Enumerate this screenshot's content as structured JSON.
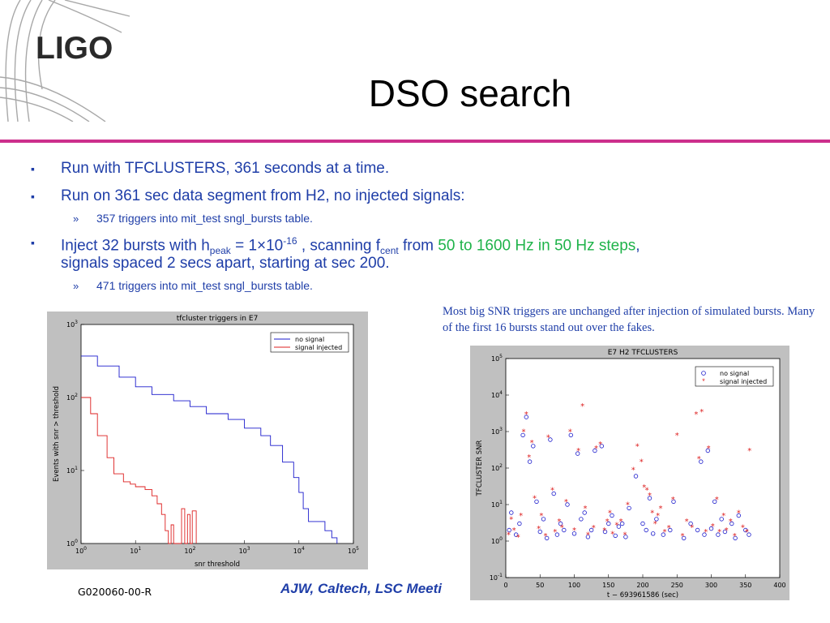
{
  "logo": {
    "text": "LIGO"
  },
  "title": "DSO search",
  "bullets": {
    "b1": "Run with TFCLUSTERS, 361 seconds at a time.",
    "b2": "Run on 361 sec data segment from H2, no injected signals:",
    "b2_sub": "357 triggers into mit_test sngl_bursts table.",
    "b3": {
      "p1": "Inject 32 bursts with h",
      "sub_peak": "peak",
      "p2": " = 1×10",
      "sup_exp": "-16",
      "p3": "  , scanning f",
      "sub_cent": "cent",
      "p4": " from ",
      "green": "50 to 1600 Hz in 50 Hz steps",
      "p5": ",",
      "line2": "signals spaced 2 secs apart, starting at sec 200."
    },
    "b3_sub": "471 triggers into mit_test sngl_bursts table.",
    "marker_main": "▪",
    "marker_sub": "»"
  },
  "note": "Most big SNR triggers are unchanged after injection of simulated bursts. Many of the first 16 bursts stand out over the fakes.",
  "footer": {
    "doc_id": "G020060-00-R",
    "author": "AJW, Caltech, LSC Meeti"
  },
  "colors": {
    "blue_series": "#1a1acc",
    "red_series": "#dd1f1f",
    "plot_bg": "#c0c0c0",
    "accent_rule": "#cc2f8c",
    "text_blue": "#1f3ea8",
    "green": "#1fb34a"
  },
  "chart_data": [
    {
      "type": "line",
      "title": "tfcluster triggers in E7",
      "xlabel": "snr threshold",
      "ylabel": "Events with snr > threshold",
      "xscale": "log",
      "yscale": "log",
      "xlim": [
        1,
        100000
      ],
      "ylim": [
        1,
        1000
      ],
      "xticks": [
        "10^0",
        "10^1",
        "10^2",
        "10^3",
        "10^4",
        "10^5"
      ],
      "yticks": [
        "10^0",
        "10^1",
        "10^2",
        "10^3"
      ],
      "legend_position": "top-right",
      "series": [
        {
          "name": "no signal",
          "color": "#1a1acc",
          "x": [
            1,
            2,
            5,
            10,
            20,
            50,
            100,
            200,
            500,
            1000,
            2000,
            3000,
            5000,
            8000,
            10000,
            12000,
            15000,
            20000,
            30000,
            40000,
            50000
          ],
          "y": [
            370,
            270,
            190,
            140,
            110,
            90,
            75,
            60,
            50,
            38,
            30,
            22,
            13,
            8,
            5,
            3,
            2,
            2,
            1.5,
            1.2,
            1
          ]
        },
        {
          "name": "signal injected",
          "color": "#dd1f1f",
          "x": [
            1,
            1.5,
            2,
            3,
            4,
            6,
            8,
            10,
            15,
            20,
            25,
            30,
            35,
            40,
            45,
            50,
            70,
            80,
            90,
            100,
            110,
            130
          ],
          "y": [
            100,
            60,
            30,
            15,
            9,
            7,
            6.5,
            6,
            5.5,
            4.5,
            3.5,
            2.5,
            1.5,
            1,
            1.8,
            1,
            3,
            1,
            2.5,
            1,
            2.8,
            1
          ]
        }
      ]
    },
    {
      "type": "scatter",
      "title": "E7 H2 TFCLUSTERS",
      "xlabel": "t − 693961586  (sec)",
      "ylabel": "TFCLUSTER SNR",
      "yscale": "log",
      "xlim": [
        0,
        400
      ],
      "ylim": [
        0.1,
        100000
      ],
      "xticks": [
        "0",
        "50",
        "100",
        "150",
        "200",
        "250",
        "300",
        "350",
        "400"
      ],
      "yticks": [
        "10^-1",
        "10^0",
        "10^1",
        "10^2",
        "10^3",
        "10^4",
        "10^5"
      ],
      "legend_position": "top-right",
      "series": [
        {
          "name": "no signal",
          "color": "#1a1acc",
          "marker": "circle",
          "points": [
            [
              5,
              2
            ],
            [
              8,
              6
            ],
            [
              15,
              1.5
            ],
            [
              20,
              3
            ],
            [
              25,
              800
            ],
            [
              30,
              2500
            ],
            [
              35,
              150
            ],
            [
              40,
              400
            ],
            [
              45,
              12
            ],
            [
              50,
              1.8
            ],
            [
              55,
              4
            ],
            [
              60,
              1.2
            ],
            [
              65,
              600
            ],
            [
              70,
              20
            ],
            [
              75,
              1.5
            ],
            [
              80,
              3
            ],
            [
              85,
              2
            ],
            [
              90,
              10
            ],
            [
              95,
              800
            ],
            [
              100,
              1.6
            ],
            [
              105,
              250
            ],
            [
              110,
              4
            ],
            [
              115,
              6
            ],
            [
              120,
              1.3
            ],
            [
              125,
              2
            ],
            [
              130,
              300
            ],
            [
              140,
              400
            ],
            [
              145,
              1.8
            ],
            [
              150,
              3
            ],
            [
              155,
              5
            ],
            [
              160,
              1.4
            ],
            [
              165,
              2.5
            ],
            [
              170,
              3
            ],
            [
              175,
              1.3
            ],
            [
              180,
              8
            ],
            [
              190,
              60
            ],
            [
              200,
              3
            ],
            [
              205,
              2
            ],
            [
              210,
              15
            ],
            [
              215,
              1.6
            ],
            [
              220,
              4
            ],
            [
              230,
              1.5
            ],
            [
              240,
              2
            ],
            [
              245,
              12
            ],
            [
              260,
              1.2
            ],
            [
              270,
              3
            ],
            [
              280,
              2
            ],
            [
              285,
              150
            ],
            [
              290,
              1.5
            ],
            [
              295,
              300
            ],
            [
              300,
              2.2
            ],
            [
              305,
              12
            ],
            [
              310,
              1.5
            ],
            [
              315,
              4
            ],
            [
              320,
              1.8
            ],
            [
              330,
              3
            ],
            [
              335,
              1.2
            ],
            [
              340,
              5
            ],
            [
              350,
              2
            ],
            [
              355,
              1.5
            ]
          ]
        },
        {
          "name": "signal injected",
          "color": "#dd1f1f",
          "marker": "star",
          "points": [
            [
              4,
              1.5
            ],
            [
              8,
              4
            ],
            [
              12,
              2
            ],
            [
              18,
              1.3
            ],
            [
              22,
              5
            ],
            [
              26,
              1000
            ],
            [
              30,
              3000
            ],
            [
              34,
              200
            ],
            [
              38,
              500
            ],
            [
              42,
              15
            ],
            [
              48,
              2.2
            ],
            [
              52,
              5
            ],
            [
              58,
              1.4
            ],
            [
              62,
              700
            ],
            [
              68,
              25
            ],
            [
              72,
              1.8
            ],
            [
              78,
              3.5
            ],
            [
              82,
              2.4
            ],
            [
              88,
              12
            ],
            [
              94,
              1000
            ],
            [
              100,
              2
            ],
            [
              106,
              300
            ],
            [
              112,
              5000
            ],
            [
              116,
              8
            ],
            [
              120,
              1.5
            ],
            [
              128,
              2.3
            ],
            [
              132,
              350
            ],
            [
              138,
              450
            ],
            [
              144,
              2
            ],
            [
              148,
              3.5
            ],
            [
              152,
              6
            ],
            [
              156,
              1.6
            ],
            [
              162,
              2.8
            ],
            [
              168,
              3.5
            ],
            [
              174,
              1.5
            ],
            [
              178,
              10
            ],
            [
              186,
              90
            ],
            [
              192,
              400
            ],
            [
              198,
              150
            ],
            [
              202,
              30
            ],
            [
              206,
              25
            ],
            [
              210,
              18
            ],
            [
              214,
              6
            ],
            [
              218,
              3
            ],
            [
              222,
              5
            ],
            [
              226,
              8
            ],
            [
              232,
              1.8
            ],
            [
              238,
              2.3
            ],
            [
              244,
              14
            ],
            [
              250,
              800
            ],
            [
              258,
              1.4
            ],
            [
              264,
              3.5
            ],
            [
              272,
              2.4
            ],
            [
              278,
              3000
            ],
            [
              282,
              180
            ],
            [
              286,
              3500
            ],
            [
              292,
              1.8
            ],
            [
              296,
              350
            ],
            [
              302,
              2.6
            ],
            [
              308,
              14
            ],
            [
              312,
              1.8
            ],
            [
              318,
              5
            ],
            [
              322,
              2
            ],
            [
              328,
              3.5
            ],
            [
              334,
              1.4
            ],
            [
              340,
              6
            ],
            [
              346,
              2.4
            ],
            [
              352,
              1.8
            ],
            [
              356,
              300
            ]
          ]
        }
      ]
    }
  ]
}
